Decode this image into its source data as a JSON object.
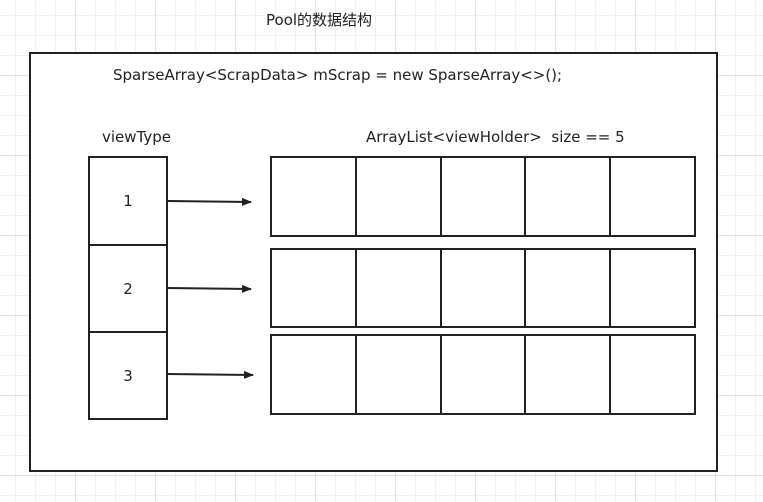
{
  "title": "Pool的数据结构",
  "code": "SparseArray<ScrapData> mScrap = new SparseArray<>();",
  "view_type_label": "viewType",
  "array_list_label": "ArrayList<viewHolder>  size == 5",
  "view_types": [
    "1",
    "2",
    "3"
  ],
  "slots_per_row": 5,
  "colors": {
    "stroke": "#222222",
    "grid": "#e2e2e2",
    "background": "#ffffff"
  }
}
